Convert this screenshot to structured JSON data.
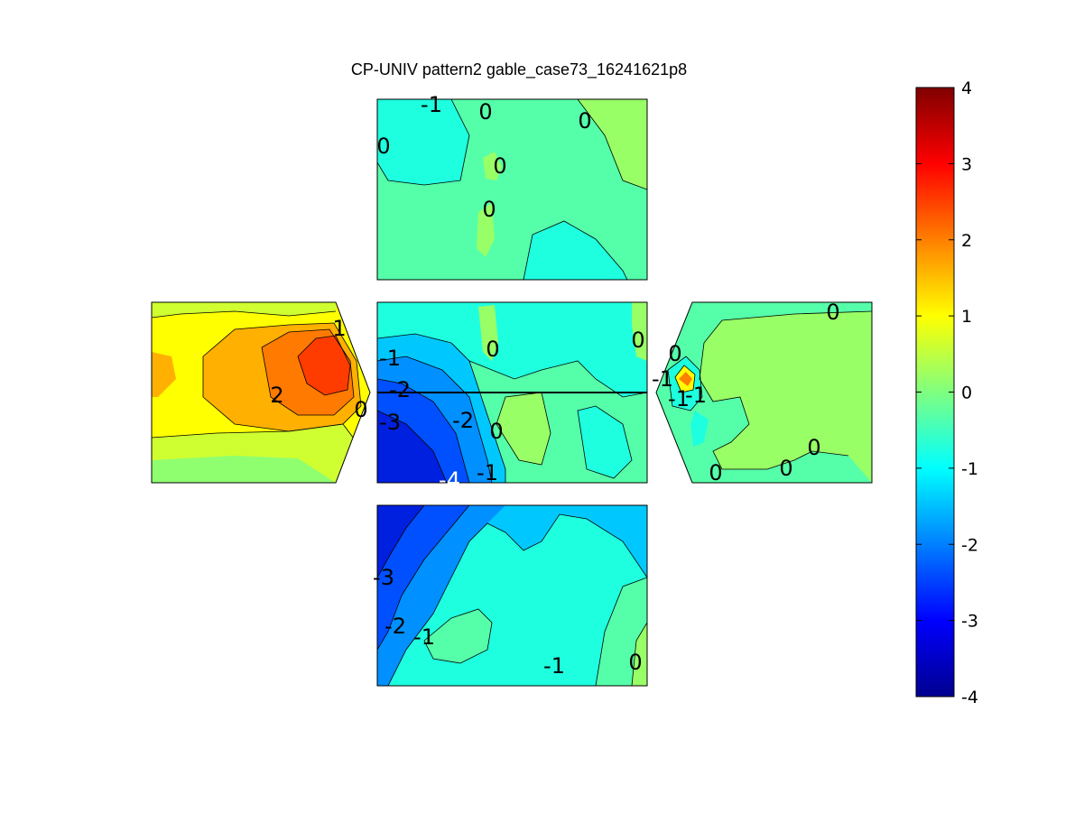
{
  "chart_data": {
    "type": "heatmap",
    "title": "CP-UNIV pattern2 gable_case73_16241621p8",
    "colorbar": {
      "range": [
        -4,
        4
      ],
      "ticks": [
        "4",
        "3",
        "2",
        "1",
        "0",
        "-1",
        "-2",
        "-3",
        "-4"
      ],
      "colormap": "jet"
    },
    "panels": [
      {
        "name": "top-roof",
        "labels": [
          "-1",
          "0",
          "0",
          "0",
          "0",
          "0"
        ]
      },
      {
        "name": "left-gable",
        "labels": [
          "1",
          "2",
          "0"
        ]
      },
      {
        "name": "center-roof",
        "labels": [
          "-1",
          "0",
          "0",
          "-2",
          "-3",
          "-2",
          "0",
          "-4",
          "-1"
        ]
      },
      {
        "name": "right-gable",
        "labels": [
          "0",
          "0",
          "-1",
          "-1",
          "-1",
          "0",
          "0",
          "0"
        ]
      },
      {
        "name": "bottom-wall",
        "labels": [
          "-3",
          "-2",
          "-1",
          "-1",
          "0"
        ]
      }
    ]
  }
}
